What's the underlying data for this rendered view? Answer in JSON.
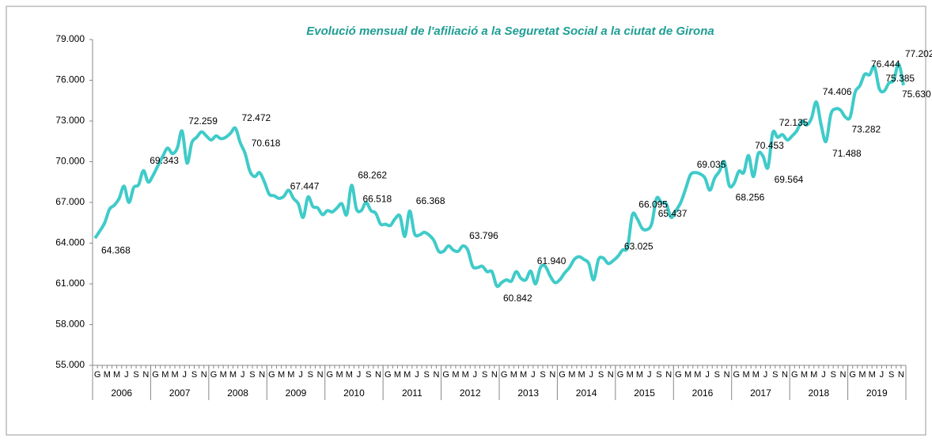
{
  "chart_data": {
    "type": "line",
    "title": "Evolució mensual de l'afiliació a la Seguretat Social a la ciutat de Girona",
    "years": [
      "2006",
      "2007",
      "2008",
      "2009",
      "2010",
      "2011",
      "2012",
      "2013",
      "2014",
      "2015",
      "2016",
      "2017",
      "2018",
      "2019"
    ],
    "categories": [
      "G",
      null,
      "M",
      null,
      "M",
      null,
      "J",
      null,
      "S",
      null,
      "N",
      null,
      "G",
      null,
      "M",
      null,
      "M",
      null,
      "J",
      null,
      "S",
      null,
      "N",
      null,
      "G",
      null,
      "M",
      null,
      "M",
      null,
      "J",
      null,
      "S",
      null,
      "N",
      null,
      "G",
      null,
      "M",
      null,
      "M",
      null,
      "J",
      null,
      "S",
      null,
      "N",
      null,
      "G",
      null,
      "M",
      null,
      "M",
      null,
      "J",
      null,
      "S",
      null,
      "N",
      null,
      "G",
      null,
      "M",
      null,
      "M",
      null,
      "J",
      null,
      "S",
      null,
      "N",
      null,
      "G",
      null,
      "M",
      null,
      "M",
      null,
      "J",
      null,
      "S",
      null,
      "N",
      null,
      "G",
      null,
      "M",
      null,
      "M",
      null,
      "J",
      null,
      "S",
      null,
      "N",
      null,
      "G",
      null,
      "M",
      null,
      "M",
      null,
      "J",
      null,
      "S",
      null,
      "N",
      null,
      "G",
      null,
      "M",
      null,
      "M",
      null,
      "J",
      null,
      "S",
      null,
      "N",
      null,
      "G",
      null,
      "M",
      null,
      "M",
      null,
      "J",
      null,
      "S",
      null,
      "N",
      null,
      "G",
      null,
      "M",
      null,
      "M",
      null,
      "J",
      null,
      "S",
      null,
      "N",
      null,
      "G",
      null,
      "M",
      null,
      "M",
      null,
      "J",
      null,
      "S",
      null,
      "N",
      null,
      "G",
      null,
      "M",
      null,
      "M",
      null,
      "J",
      null,
      "S",
      null,
      "N",
      null
    ],
    "values": [
      64368,
      64900,
      65500,
      66500,
      66800,
      67300,
      68200,
      67000,
      68100,
      68300,
      69343,
      68500,
      69000,
      69700,
      70400,
      71000,
      70600,
      71000,
      72259,
      69900,
      71400,
      71800,
      72200,
      71900,
      71600,
      71900,
      71700,
      71800,
      72100,
      72472,
      71400,
      70618,
      69300,
      68900,
      69200,
      68500,
      67600,
      67500,
      67300,
      67447,
      67900,
      67300,
      66900,
      65900,
      67400,
      66700,
      66600,
      66100,
      66400,
      66300,
      66600,
      66900,
      66100,
      68262,
      66518,
      66400,
      67000,
      66400,
      66200,
      65400,
      65400,
      65300,
      65800,
      66000,
      64500,
      66368,
      64700,
      64600,
      64800,
      64600,
      64200,
      63400,
      63400,
      63800,
      63500,
      63400,
      63796,
      63500,
      62300,
      62200,
      62300,
      61900,
      61900,
      60842,
      61100,
      61300,
      61200,
      61900,
      61400,
      61300,
      61940,
      61000,
      62200,
      62300,
      61600,
      61100,
      61300,
      61800,
      62200,
      62800,
      63000,
      62800,
      62500,
      61300,
      62800,
      62900,
      62500,
      62700,
      63025,
      63500,
      63700,
      66095,
      65800,
      65100,
      65000,
      65437,
      67300,
      67000,
      66900,
      65900,
      66400,
      67000,
      68000,
      69035,
      69200,
      69100,
      68800,
      67900,
      68800,
      69300,
      70000,
      68256,
      68400,
      69300,
      69200,
      70453,
      68900,
      70600,
      70400,
      69564,
      72135,
      71800,
      72000,
      71600,
      71900,
      72300,
      73000,
      72700,
      73200,
      74406,
      72700,
      71488,
      73500,
      73900,
      73800,
      73282,
      73300,
      75100,
      75600,
      76444,
      76400,
      77000,
      75385,
      75200,
      75800,
      76000,
      77202,
      75630
    ],
    "value_labels": [
      "64.368",
      null,
      null,
      null,
      null,
      null,
      null,
      null,
      null,
      null,
      "69.343",
      null,
      null,
      null,
      null,
      null,
      null,
      null,
      "72.259",
      null,
      null,
      null,
      null,
      null,
      null,
      null,
      null,
      null,
      null,
      "72.472",
      null,
      "70.618",
      null,
      null,
      null,
      null,
      null,
      null,
      null,
      "67.447",
      null,
      null,
      null,
      null,
      null,
      null,
      null,
      null,
      null,
      null,
      null,
      null,
      null,
      "68.262",
      "66.518",
      null,
      null,
      null,
      null,
      null,
      null,
      null,
      null,
      null,
      null,
      "66.368",
      null,
      null,
      null,
      null,
      null,
      null,
      null,
      null,
      null,
      null,
      "63.796",
      null,
      null,
      null,
      null,
      null,
      null,
      "60.842",
      null,
      null,
      null,
      null,
      null,
      null,
      "61.940",
      null,
      null,
      null,
      null,
      null,
      null,
      null,
      null,
      null,
      null,
      null,
      null,
      null,
      null,
      null,
      null,
      null,
      "63.025",
      null,
      null,
      "66.095",
      null,
      null,
      null,
      "65.437",
      null,
      null,
      null,
      null,
      null,
      null,
      null,
      "69.035",
      null,
      null,
      null,
      null,
      null,
      null,
      null,
      "68.256",
      null,
      null,
      null,
      "70.453",
      null,
      null,
      null,
      "69.564",
      "72.135",
      null,
      null,
      null,
      null,
      null,
      null,
      null,
      null,
      "74.406",
      null,
      "71.488",
      null,
      null,
      null,
      "73.282",
      null,
      null,
      null,
      "76.444",
      null,
      null,
      "75.385",
      null,
      null,
      null,
      "77.202",
      "75.630"
    ],
    "color": "#3fcbc9",
    "ylim": [
      55000,
      79000
    ],
    "yticks": [
      {
        "value": 55000,
        "label": "55.000"
      },
      {
        "value": 58000,
        "label": "58.000"
      },
      {
        "value": 61000,
        "label": "61.000"
      },
      {
        "value": 64000,
        "label": "64.000"
      },
      {
        "value": 67000,
        "label": "67.000"
      },
      {
        "value": 70000,
        "label": "70.000"
      },
      {
        "value": 73000,
        "label": "73.000"
      },
      {
        "value": 76000,
        "label": "76.000"
      },
      {
        "value": 79000,
        "label": "79.000"
      }
    ]
  }
}
